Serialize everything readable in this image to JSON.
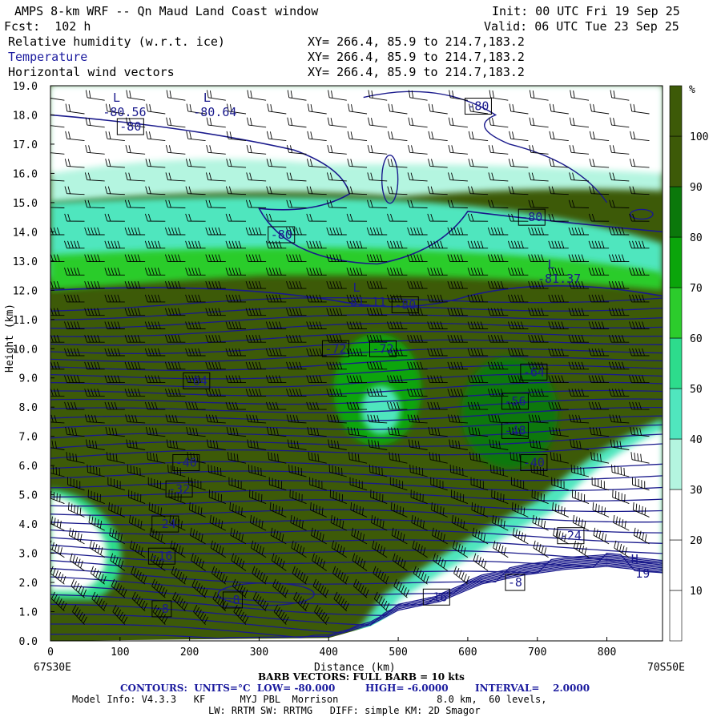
{
  "header": {
    "title": "AMPS 8-km WRF -- Qn Maud Land Coast window",
    "init": "Init: 00 UTC Fri 19 Sep 25",
    "fcst": "Fcst:  102 h",
    "valid": "Valid: 06 UTC Tue 23 Sep 25",
    "fields": [
      {
        "name": "Relative humidity (w.r.t. ice)",
        "xy": "XY= 266.4, 85.9 to 214.7,183.2"
      },
      {
        "name": "Temperature",
        "xy": "XY= 266.4, 85.9 to 214.7,183.2"
      },
      {
        "name": "Horizontal wind vectors",
        "xy": "XY= 266.4, 85.9 to 214.7,183.2"
      }
    ]
  },
  "colors": {
    "rh_fill": [
      "#ffffff",
      "#ffffff",
      "#ffffff",
      "#b4f5e0",
      "#50e6be",
      "#2ddc8c",
      "#2ccc2c",
      "#0ba50b",
      "#0b780b",
      "#3d5a08"
    ],
    "contour": "#1a1a8c",
    "barb": "#000000",
    "header_blue": "#1a1a9e"
  },
  "chart_data": {
    "type": "heatmap",
    "xlabel": "Distance (km)",
    "ylabel": "Height (km)",
    "xlim": [
      0,
      880
    ],
    "ylim": [
      0,
      19
    ],
    "x_ticks": [
      0,
      100,
      200,
      300,
      400,
      500,
      600,
      700,
      800
    ],
    "y_ticks": [
      "0.0",
      "1.0",
      "2.0",
      "3.0",
      "4.0",
      "5.0",
      "6.0",
      "7.0",
      "8.0",
      "9.0",
      "10.0",
      "11.0",
      "12.0",
      "13.0",
      "14.0",
      "15.0",
      "16.0",
      "17.0",
      "18.0",
      "19.0"
    ],
    "x_endpoints": {
      "left": "67S30E",
      "right": "70S50E"
    },
    "colorbar": {
      "unit": "%",
      "levels": [
        10,
        20,
        30,
        40,
        50,
        60,
        70,
        80,
        90,
        100
      ]
    },
    "contour_labels": [
      {
        "text": "-80",
        "x": 115,
        "y": 17.6
      },
      {
        "text": "-80",
        "x": 332,
        "y": 13.9
      },
      {
        "text": "-80",
        "x": 510,
        "y": 11.5
      },
      {
        "text": "-80",
        "x": 615,
        "y": 18.3
      },
      {
        "text": "-80",
        "x": 692,
        "y": 14.5
      },
      {
        "text": "-72",
        "x": 410,
        "y": 10.0
      },
      {
        "text": "-72",
        "x": 478,
        "y": 10.0
      },
      {
        "text": "-64",
        "x": 210,
        "y": 8.9
      },
      {
        "text": "-64",
        "x": 695,
        "y": 9.2
      },
      {
        "text": "-56",
        "x": 668,
        "y": 8.2
      },
      {
        "text": "-48",
        "x": 668,
        "y": 7.2
      },
      {
        "text": "-40",
        "x": 195,
        "y": 6.1
      },
      {
        "text": "-40",
        "x": 695,
        "y": 6.1
      },
      {
        "text": "-32",
        "x": 185,
        "y": 5.2
      },
      {
        "text": "-24",
        "x": 165,
        "y": 4.0
      },
      {
        "text": "-24",
        "x": 748,
        "y": 3.6
      },
      {
        "text": "-16",
        "x": 160,
        "y": 2.9
      },
      {
        "text": "-8",
        "x": 160,
        "y": 1.1
      },
      {
        "text": "-8",
        "x": 262,
        "y": 1.4
      },
      {
        "text": "-16",
        "x": 555,
        "y": 1.5
      },
      {
        "text": "-8",
        "x": 668,
        "y": 2.0
      }
    ],
    "extrema": [
      {
        "mark": "L",
        "value": "-80.56",
        "x": 95,
        "y": 18.4
      },
      {
        "mark": "L",
        "value": "-80.64",
        "x": 225,
        "y": 18.4
      },
      {
        "mark": "L",
        "value": "-81.11",
        "x": 440,
        "y": 11.9
      },
      {
        "mark": "L",
        "value": "-81.37",
        "x": 720,
        "y": 12.7
      },
      {
        "mark": "H",
        "value": "19",
        "x": 840,
        "y": 2.6
      }
    ]
  },
  "footer": {
    "barb": "BARB VECTORS: FULL BARB = 10 kts",
    "contours": "CONTOURS:  UNITS=°C  LOW= -80.000         HIGH= -6.0000        INTERVAL=    2.0000",
    "model_line1": "Model Info: V4.3.3   KF      MYJ PBL  Morrison                 8.0 km,  60 levels,",
    "model_line2": "LW: RRTM SW: RRTMG   DIFF: simple KM: 2D Smagor"
  }
}
